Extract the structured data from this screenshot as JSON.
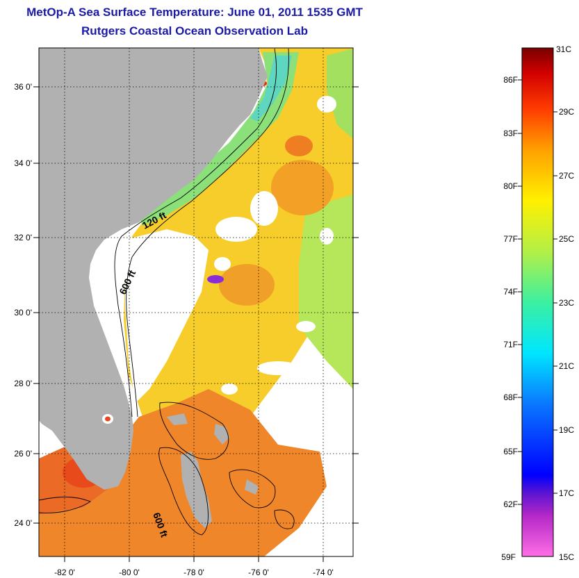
{
  "title": "MetOp-A Sea Surface Temperature:  June 01, 2011 1535 GMT",
  "subtitle": "Rutgers Coastal Ocean Observation Lab",
  "map": {
    "lon_range": [
      -83,
      -73
    ],
    "lat_range": [
      23,
      37.2
    ],
    "lon_ticks": [
      "-82 0'",
      "-80 0'",
      "-78 0'",
      "-76 0'",
      "-74 0'"
    ],
    "lat_ticks": [
      "24 0'",
      "26 0'",
      "28 0'",
      "30 0'",
      "32 0'",
      "34 0'",
      "36 0'"
    ],
    "contour_labels": [
      "120 ft",
      "600 ft",
      "600 ft"
    ],
    "colors": {
      "land": "#b1b1b1",
      "clouds": "#ffffff",
      "warm_water": "#f0821e",
      "mid_water": "#f5c81e",
      "cool_water": "#a0e650"
    }
  },
  "colorbar": {
    "fahrenheit_labels": [
      "86F",
      "83F",
      "80F",
      "77F",
      "74F",
      "71F",
      "68F",
      "65F",
      "62F",
      "59F"
    ],
    "celsius_labels": [
      "31C",
      "29C",
      "27C",
      "25C",
      "23C",
      "21C",
      "19C",
      "17C",
      "15C"
    ],
    "range_c": [
      15,
      31
    ]
  }
}
